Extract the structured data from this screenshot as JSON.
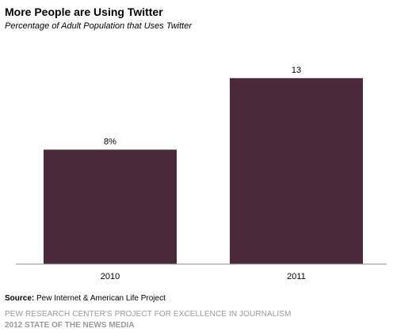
{
  "header": {
    "title": "More People are Using Twitter",
    "subtitle": "Percentage of Adult Population that Uses Twitter"
  },
  "chart_data": {
    "type": "bar",
    "title": "More People are Using Twitter",
    "subtitle": "Percentage of Adult Population that Uses Twitter",
    "categories": [
      "2010",
      "2011"
    ],
    "values": [
      8,
      13
    ],
    "data_labels": [
      "8%",
      "13"
    ],
    "xlabel": "",
    "ylabel": "",
    "ylim": [
      0,
      15.7
    ],
    "grid": false,
    "legend": "none",
    "bar_color": "#4a2a3a"
  },
  "footer": {
    "source_label": "Source:",
    "source_text": " Pew Internet & American Life Project",
    "credit_line": "PEW RESEARCH CENTER'S PROJECT FOR EXCELLENCE IN JOURNALISM",
    "report_line": "2012 STATE OF THE NEWS MEDIA"
  }
}
